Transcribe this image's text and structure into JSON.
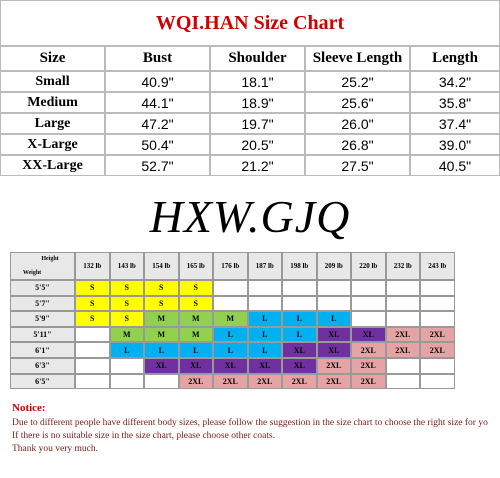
{
  "size_chart": {
    "title": "WQI.HAN Size Chart",
    "columns": [
      "Size",
      "Bust",
      "Shoulder",
      "Sleeve Length",
      "Length"
    ],
    "rows": [
      [
        "Small",
        "40.9\"",
        "18.1\"",
        "25.2\"",
        "34.2\""
      ],
      [
        "Medium",
        "44.1\"",
        "18.9\"",
        "25.6\"",
        "35.8\""
      ],
      [
        "Large",
        "47.2\"",
        "19.7\"",
        "26.0\"",
        "37.4\""
      ],
      [
        "X-Large",
        "50.4\"",
        "20.5\"",
        "26.8\"",
        "39.0\""
      ],
      [
        "XX-Large",
        "52.7\"",
        "21.2\"",
        "27.5\"",
        "40.5\""
      ]
    ]
  },
  "brand": "HXW.GJQ",
  "weight_chart": {
    "corner": {
      "height": "Height",
      "weight": "Weight"
    },
    "weights": [
      "132 lb",
      "143 lb",
      "154 lb",
      "165 lb",
      "176 lb",
      "187 lb",
      "198 lb",
      "209 lb",
      "220 lb",
      "232 lb",
      "243 lb"
    ],
    "rows": [
      {
        "height": "5'5\"",
        "cells": [
          "S",
          "S",
          "S",
          "S",
          null,
          null,
          null,
          null,
          null,
          null,
          null
        ]
      },
      {
        "height": "5'7\"",
        "cells": [
          "S",
          "S",
          "S",
          "S",
          null,
          null,
          null,
          null,
          null,
          null,
          null
        ]
      },
      {
        "height": "5'9\"",
        "cells": [
          "S",
          "S",
          "M",
          "M",
          "M",
          "L",
          "L",
          "L",
          null,
          null,
          null
        ]
      },
      {
        "height": "5'11\"",
        "cells": [
          null,
          "M",
          "M",
          "M",
          "L",
          "L",
          "L",
          "XL",
          "XL",
          "2XL",
          "2XL"
        ]
      },
      {
        "height": "6'1\"",
        "cells": [
          null,
          "L",
          "L",
          "L",
          "L",
          "L",
          "XL",
          "XL",
          "2XL",
          "2XL",
          "2XL"
        ]
      },
      {
        "height": "6'3\"",
        "cells": [
          null,
          null,
          "XL",
          "XL",
          "XL",
          "XL",
          "XL",
          "2XL",
          "2XL",
          null,
          null
        ]
      },
      {
        "height": "6'5\"",
        "cells": [
          null,
          null,
          null,
          "2XL",
          "2XL",
          "2XL",
          "2XL",
          "2XL",
          "2XL",
          null,
          null
        ]
      }
    ]
  },
  "notice": {
    "heading": "Notice:",
    "lines": [
      "Due to different people have different body sizes, please follow the suggestion in the size chart to choose the right size for yo",
      "If there is no suitable size in the size chart, please choose other coats.",
      "Thank you very much."
    ]
  }
}
